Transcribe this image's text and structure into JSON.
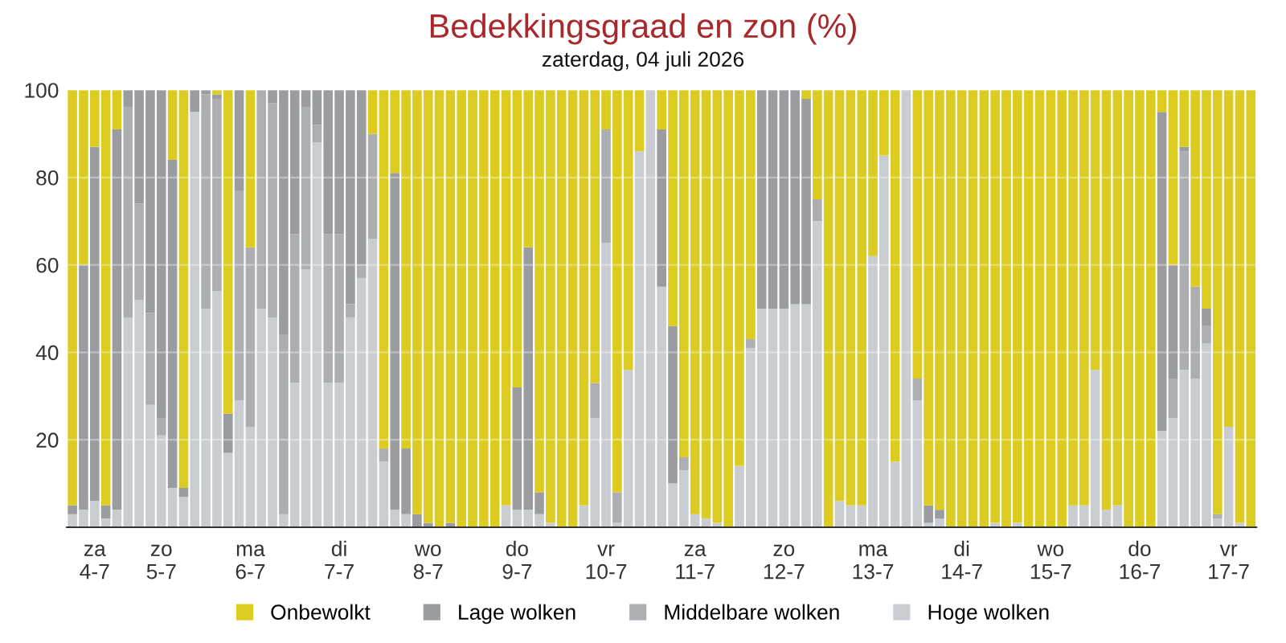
{
  "chart_data": {
    "type": "bar",
    "stacked": true,
    "title": "Bedekkingsgraad en zon (%)",
    "subtitle": "zaterdag, 04 juli 2026",
    "categories": [
      null,
      null,
      "za\n4-7",
      null,
      null,
      null,
      null,
      null,
      "zo\n5-7",
      null,
      null,
      null,
      null,
      null,
      null,
      null,
      "ma\n6-7",
      null,
      null,
      null,
      null,
      null,
      null,
      null,
      "di\n7-7",
      null,
      null,
      null,
      null,
      null,
      null,
      null,
      "wo\n8-7",
      null,
      null,
      null,
      null,
      null,
      null,
      null,
      "do\n9-7",
      null,
      null,
      null,
      null,
      null,
      null,
      null,
      "vr\n10-7",
      null,
      null,
      null,
      null,
      null,
      null,
      null,
      "za\n11-7",
      null,
      null,
      null,
      null,
      null,
      null,
      null,
      "zo\n12-7",
      null,
      null,
      null,
      null,
      null,
      null,
      null,
      "ma\n13-7",
      null,
      null,
      null,
      null,
      null,
      null,
      null,
      "di\n14-7",
      null,
      null,
      null,
      null,
      null,
      null,
      null,
      "wo\n15-7",
      null,
      null,
      null,
      null,
      null,
      null,
      null,
      "do\n16-7",
      null,
      null,
      null,
      null,
      null,
      null,
      null,
      "vr\n17-7",
      null,
      null
    ],
    "series": [
      {
        "name": "Hoge wolken",
        "color": "#c9cdd2",
        "values": [
          3,
          4,
          6,
          2,
          4,
          48,
          52,
          28,
          21,
          9,
          7,
          95,
          50,
          54,
          17,
          29,
          23,
          50,
          48,
          3,
          33,
          59,
          88,
          33,
          33,
          48,
          57,
          66,
          15,
          4,
          3,
          0,
          0,
          0,
          0,
          0,
          0,
          0,
          0,
          5,
          4,
          4,
          3,
          1,
          0,
          0,
          5,
          25,
          65,
          1,
          36,
          86,
          100,
          55,
          10,
          13,
          3,
          2,
          1,
          0,
          14,
          41,
          50,
          50,
          50,
          51,
          51,
          70,
          0,
          6,
          5,
          5,
          62,
          85,
          15,
          100,
          29,
          1,
          2,
          0,
          0,
          0,
          0,
          1,
          0,
          1,
          0,
          0,
          0,
          0,
          5,
          5,
          36,
          4,
          5,
          0,
          0,
          0,
          22,
          25,
          36,
          34,
          42,
          2,
          23,
          1,
          0
        ]
      },
      {
        "name": "Middelbare wolken",
        "color": "#acaeb2",
        "values": [
          0,
          0,
          0,
          0,
          0,
          48,
          22,
          21,
          4,
          0,
          0,
          0,
          49,
          44,
          0,
          48,
          41,
          50,
          49,
          41,
          34,
          37,
          4,
          34,
          34,
          3,
          3,
          24,
          3,
          0,
          0,
          0,
          0,
          0,
          0,
          0,
          0,
          0,
          0,
          0,
          0,
          0,
          0,
          0,
          0,
          0,
          0,
          8,
          26,
          7,
          0,
          0,
          0,
          0,
          0,
          3,
          0,
          0,
          0,
          0,
          0,
          2,
          0,
          0,
          0,
          0,
          0,
          5,
          0,
          0,
          0,
          0,
          0,
          0,
          0,
          0,
          5,
          0,
          0,
          0,
          0,
          0,
          0,
          0,
          0,
          0,
          0,
          0,
          0,
          0,
          0,
          0,
          0,
          0,
          0,
          0,
          0,
          0,
          0,
          9,
          50,
          21,
          4,
          1,
          0,
          0,
          0
        ]
      },
      {
        "name": "Lage wolken",
        "color": "#9a9c9f",
        "values": [
          2,
          56,
          81,
          3,
          87,
          4,
          26,
          51,
          75,
          75,
          2,
          5,
          1,
          1,
          9,
          23,
          0,
          0,
          3,
          56,
          33,
          4,
          8,
          33,
          33,
          49,
          40,
          0,
          0,
          77,
          15,
          3,
          1,
          0,
          1,
          0,
          0,
          0,
          0,
          0,
          28,
          60,
          5,
          0,
          0,
          0,
          0,
          0,
          0,
          0,
          0,
          0,
          0,
          36,
          36,
          0,
          0,
          0,
          0,
          0,
          0,
          0,
          50,
          50,
          50,
          49,
          47,
          0,
          0,
          0,
          0,
          0,
          0,
          0,
          0,
          0,
          0,
          4,
          2,
          0,
          0,
          0,
          0,
          0,
          0,
          0,
          0,
          0,
          0,
          0,
          0,
          0,
          0,
          0,
          0,
          0,
          0,
          0,
          73,
          26,
          1,
          0,
          4,
          0,
          0,
          0,
          0
        ]
      },
      {
        "name": "Onbewolkt",
        "color": "#dccc22",
        "values": [
          95,
          40,
          13,
          95,
          9,
          0,
          0,
          0,
          0,
          16,
          91,
          0,
          0,
          1,
          74,
          0,
          36,
          0,
          0,
          0,
          0,
          0,
          0,
          0,
          0,
          0,
          0,
          10,
          82,
          19,
          82,
          97,
          99,
          100,
          99,
          100,
          100,
          100,
          100,
          95,
          68,
          36,
          92,
          99,
          100,
          100,
          95,
          67,
          9,
          92,
          64,
          14,
          0,
          9,
          54,
          84,
          97,
          98,
          99,
          100,
          86,
          57,
          0,
          0,
          0,
          0,
          2,
          25,
          100,
          94,
          95,
          95,
          38,
          15,
          85,
          0,
          66,
          95,
          96,
          100,
          100,
          100,
          100,
          99,
          100,
          99,
          100,
          100,
          100,
          100,
          95,
          95,
          64,
          96,
          95,
          100,
          100,
          100,
          5,
          40,
          13,
          45,
          50,
          97,
          77,
          99,
          100
        ]
      }
    ],
    "ylim": [
      0,
      100
    ],
    "yticks": [
      20,
      40,
      60,
      80,
      100
    ],
    "grid": "y",
    "legend": "bottom"
  }
}
